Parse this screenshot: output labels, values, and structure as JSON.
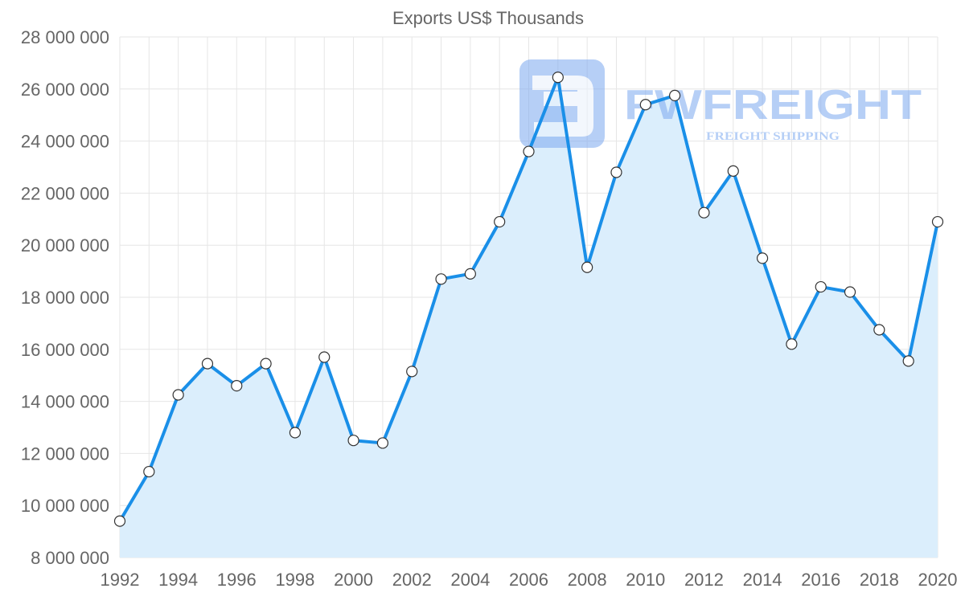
{
  "chart_data": {
    "type": "line",
    "title": "Exports US$ Thousands",
    "xlabel": "",
    "ylabel": "",
    "x": [
      1992,
      1993,
      1994,
      1995,
      1996,
      1997,
      1998,
      1999,
      2000,
      2001,
      2002,
      2003,
      2004,
      2005,
      2006,
      2007,
      2008,
      2009,
      2010,
      2011,
      2012,
      2013,
      2014,
      2015,
      2016,
      2017,
      2018,
      2019,
      2020
    ],
    "series": [
      {
        "name": "Exports US$ Thousands",
        "values": [
          9400000,
          11300000,
          14250000,
          15450000,
          14600000,
          15450000,
          12800000,
          15700000,
          12500000,
          12400000,
          15150000,
          18700000,
          18900000,
          20900000,
          23600000,
          26450000,
          19150000,
          22800000,
          25400000,
          25750000,
          21250000,
          22850000,
          19500000,
          16200000,
          18400000,
          18200000,
          16750000,
          15550000,
          20900000
        ]
      }
    ],
    "xlim": [
      1992,
      2020
    ],
    "ylim": [
      8000000,
      28000000
    ],
    "x_ticks": [
      "1992",
      "1994",
      "1996",
      "1998",
      "2000",
      "2002",
      "2004",
      "2006",
      "2008",
      "2010",
      "2012",
      "2014",
      "2016",
      "2018",
      "2020"
    ],
    "y_ticks": [
      "8 000 000",
      "10 000 000",
      "12 000 000",
      "14 000 000",
      "16 000 000",
      "18 000 000",
      "20 000 000",
      "22 000 000",
      "24 000 000",
      "26 000 000",
      "28 000 000"
    ],
    "grid": true,
    "filled_area": true,
    "colors": {
      "line": "#1a8fe8",
      "fill": "#dbeefc",
      "point_fill": "#ffffff",
      "point_stroke": "#333333"
    }
  },
  "watermark": {
    "brand": "FWFREIGHT",
    "tagline": "FREIGHT SHIPPING",
    "color": "#7ba8f0"
  }
}
